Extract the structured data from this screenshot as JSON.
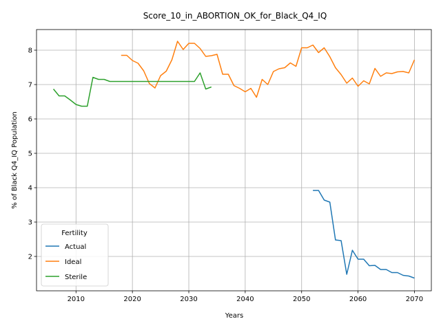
{
  "chart_data": {
    "type": "line",
    "title": "Score_10_in_ABORTION_OK_for_Black_Q4_IQ",
    "xlabel": "Years",
    "ylabel": "% of Black Q4_IQ Population",
    "xlim": [
      2003,
      2073
    ],
    "ylim": [
      1.0,
      8.6
    ],
    "xticks": [
      2010,
      2020,
      2030,
      2040,
      2050,
      2060,
      2070
    ],
    "yticks": [
      2,
      3,
      4,
      5,
      6,
      7,
      8
    ],
    "grid": true,
    "legend": {
      "title": "Fertility",
      "placement": "lower-left"
    },
    "series": [
      {
        "name": "Actual",
        "color": "#1f77b4",
        "x": [
          2052,
          2053,
          2054,
          2055,
          2056,
          2057,
          2058,
          2059,
          2060,
          2061,
          2062,
          2063,
          2064,
          2065,
          2066,
          2067,
          2068,
          2069,
          2070
        ],
        "y": [
          3.92,
          3.92,
          3.64,
          3.58,
          2.48,
          2.46,
          1.48,
          2.18,
          1.92,
          1.92,
          1.73,
          1.74,
          1.62,
          1.62,
          1.53,
          1.53,
          1.45,
          1.43,
          1.37
        ]
      },
      {
        "name": "Ideal",
        "color": "#ff7f0e",
        "x": [
          2018,
          2019,
          2020,
          2021,
          2022,
          2023,
          2024,
          2025,
          2026,
          2027,
          2028,
          2029,
          2030,
          2031,
          2032,
          2033,
          2034,
          2035,
          2036,
          2037,
          2038,
          2039,
          2040,
          2041,
          2042,
          2043,
          2044,
          2045,
          2046,
          2047,
          2048,
          2049,
          2050,
          2051,
          2052,
          2053,
          2054,
          2055,
          2056,
          2057,
          2058,
          2059,
          2060,
          2061,
          2062,
          2063,
          2064,
          2065,
          2066,
          2067,
          2068,
          2069,
          2070
        ],
        "y": [
          7.85,
          7.85,
          7.7,
          7.62,
          7.4,
          7.03,
          6.9,
          7.26,
          7.39,
          7.72,
          8.26,
          8.02,
          8.2,
          8.2,
          8.05,
          7.82,
          7.84,
          7.88,
          7.3,
          7.3,
          6.97,
          6.89,
          6.79,
          6.89,
          6.63,
          7.15,
          7.0,
          7.38,
          7.46,
          7.49,
          7.63,
          7.53,
          8.07,
          8.07,
          8.15,
          7.93,
          8.07,
          7.81,
          7.49,
          7.29,
          7.04,
          7.19,
          6.95,
          7.11,
          7.02,
          7.47,
          7.24,
          7.34,
          7.32,
          7.37,
          7.38,
          7.34,
          7.72
        ]
      },
      {
        "name": "Sterile",
        "color": "#2ca02c",
        "x": [
          2006,
          2007,
          2008,
          2009,
          2010,
          2011,
          2012,
          2013,
          2014,
          2015,
          2016,
          2017,
          2018,
          2019,
          2020,
          2021,
          2022,
          2023,
          2024,
          2025,
          2026,
          2027,
          2028,
          2029,
          2030,
          2031,
          2032,
          2033,
          2034
        ],
        "y": [
          6.87,
          6.67,
          6.67,
          6.55,
          6.42,
          6.37,
          6.37,
          7.21,
          7.15,
          7.15,
          7.09,
          7.09,
          7.09,
          7.09,
          7.09,
          7.09,
          7.09,
          7.09,
          7.09,
          7.09,
          7.09,
          7.09,
          7.09,
          7.09,
          7.09,
          7.09,
          7.34,
          6.87,
          6.93
        ]
      }
    ]
  }
}
